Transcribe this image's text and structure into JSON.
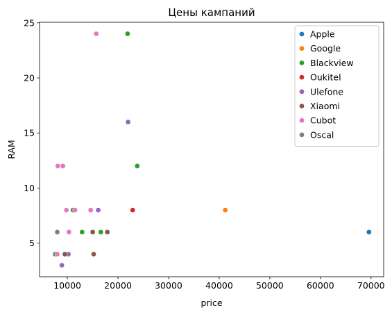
{
  "chart_data": {
    "type": "scatter",
    "title": "Цены кампаний",
    "xlabel": "price",
    "ylabel": "RAM",
    "xlim": [
      4500,
      72500
    ],
    "ylim": [
      1.95,
      25.05
    ],
    "xticks": [
      10000,
      20000,
      30000,
      40000,
      50000,
      60000,
      70000
    ],
    "yticks": [
      5,
      10,
      15,
      20,
      25
    ],
    "grid": false,
    "legend_position": "top-right",
    "series": [
      {
        "name": "Apple",
        "color": "#1f77b4",
        "points": [
          [
            69600,
            6
          ]
        ]
      },
      {
        "name": "Google",
        "color": "#ff7f0e",
        "points": [
          [
            41200,
            8
          ]
        ]
      },
      {
        "name": "Blackview",
        "color": "#2ca02c",
        "points": [
          [
            21900,
            24
          ],
          [
            23800,
            12
          ],
          [
            11100,
            8
          ],
          [
            12900,
            6
          ],
          [
            16600,
            6
          ],
          [
            7600,
            4
          ]
        ]
      },
      {
        "name": "Oukitel",
        "color": "#d62728",
        "points": [
          [
            22900,
            8
          ]
        ]
      },
      {
        "name": "Ulefone",
        "color": "#9467bd",
        "points": [
          [
            22000,
            16
          ],
          [
            16100,
            8
          ],
          [
            10200,
            4
          ],
          [
            8900,
            3
          ]
        ]
      },
      {
        "name": "Xiaomi",
        "color": "#8c564b",
        "points": [
          [
            15000,
            6
          ],
          [
            17900,
            6
          ],
          [
            15200,
            4
          ],
          [
            9500,
            4
          ]
        ]
      },
      {
        "name": "Cubot",
        "color": "#e377c2",
        "points": [
          [
            15700,
            24
          ],
          [
            8100,
            12
          ],
          [
            9100,
            12
          ],
          [
            9800,
            8
          ],
          [
            11500,
            8
          ],
          [
            14600,
            8
          ],
          [
            10300,
            6
          ],
          [
            8000,
            4
          ]
        ]
      },
      {
        "name": "Oscal",
        "color": "#7f7f7f",
        "points": [
          [
            8000,
            6
          ]
        ]
      }
    ]
  }
}
